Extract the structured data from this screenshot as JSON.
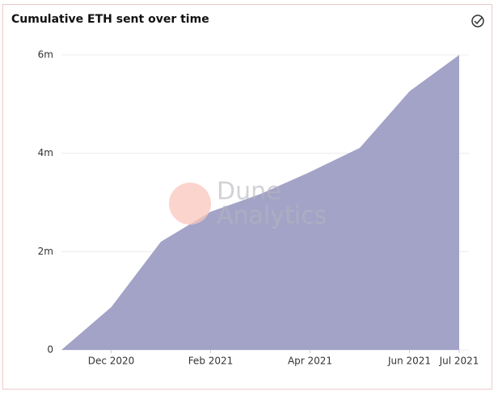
{
  "chart_data": {
    "type": "area",
    "title": "Cumulative ETH sent over time",
    "watermark": [
      "Dune",
      "Analytics"
    ],
    "x": [
      "2020-11",
      "2020-12",
      "2021-01",
      "2021-02",
      "2021-03",
      "2021-04",
      "2021-05",
      "2021-06",
      "2021-07"
    ],
    "values": [
      0,
      870000,
      2200000,
      2810000,
      3170000,
      3620000,
      4110000,
      5260000,
      6000000
    ],
    "color": "#a3a3c8",
    "xlim": [
      "2020-11",
      "2021-07"
    ],
    "xticks": [
      {
        "value": "2020-12",
        "label": "Dec 2020"
      },
      {
        "value": "2021-02",
        "label": "Feb 2021"
      },
      {
        "value": "2021-04",
        "label": "Apr 2021"
      },
      {
        "value": "2021-06",
        "label": "Jun 2021"
      },
      {
        "value": "2021-07",
        "label": "Jul 2021"
      }
    ],
    "ylim": [
      0,
      6000000
    ],
    "yticks": [
      0,
      {
        "value": 2000000,
        "label": "2m"
      },
      {
        "value": 4000000,
        "label": "4m"
      },
      {
        "value": 6000000,
        "label": "6m"
      }
    ],
    "grid": true
  }
}
